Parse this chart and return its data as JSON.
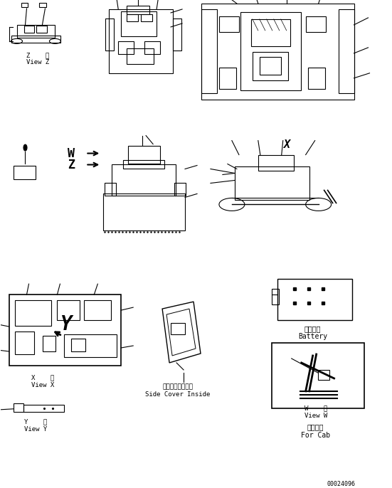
{
  "bg_color": "#ffffff",
  "line_color": "#000000",
  "figure_size": [
    5.51,
    6.86
  ],
  "dpi": 100,
  "part_number": "00024096",
  "labels": {
    "view_z_jp": "Z    視",
    "view_z_en": "View Z",
    "view_x_jp": "X    視",
    "view_x_en": "View X",
    "view_y_jp": "Y    視",
    "view_y_en": "View Y",
    "view_w_jp": "W    視",
    "view_w_en": "View W",
    "side_cover_jp": "サイドカバー内面",
    "side_cover_en": "Side Cover Inside",
    "battery_jp": "バッテリ",
    "battery_en": "Battery",
    "for_cab_jp": "キャブ用",
    "for_cab_en": "For Cab",
    "W_label": "W",
    "Z_label": "Z",
    "X_label": "X"
  }
}
